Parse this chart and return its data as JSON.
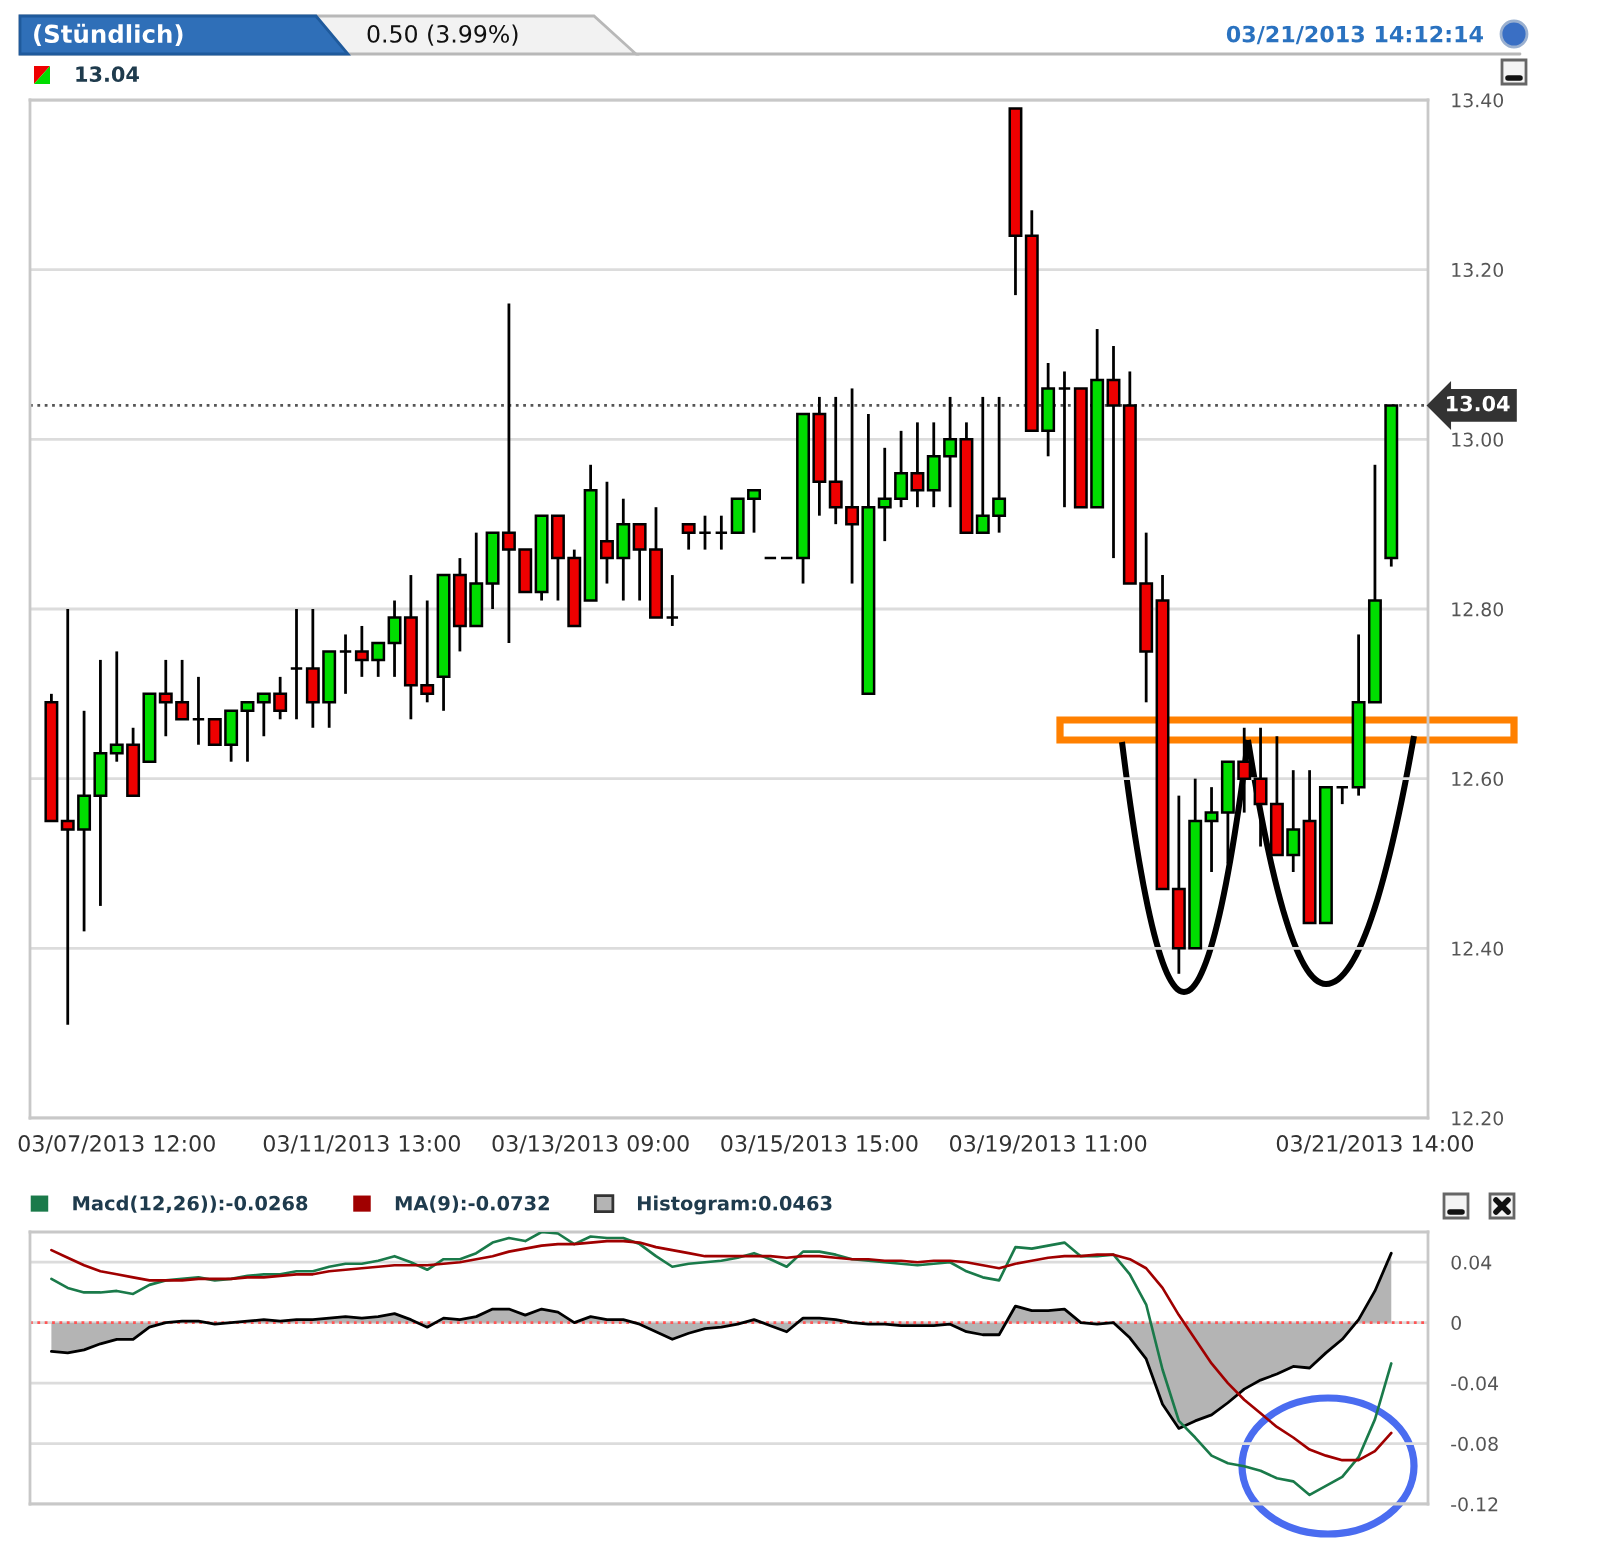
{
  "chart_data": [
    {
      "type": "candlestick",
      "title": "(Stündlich)",
      "subtitle": "0.50 (3.99%)",
      "annotations": [
        "03/21/2013 14:12:14",
        "13.04"
      ],
      "categories": [
        null,
        null,
        null,
        null,
        "03/07/2013 12:00",
        null,
        null,
        null,
        null,
        null,
        null,
        null,
        null,
        null,
        null,
        null,
        null,
        null,
        null,
        "03/11/2013 13:00",
        null,
        null,
        null,
        null,
        null,
        null,
        null,
        null,
        null,
        null,
        null,
        null,
        null,
        "03/13/2013 09:00",
        null,
        null,
        null,
        null,
        null,
        null,
        null,
        null,
        null,
        null,
        null,
        null,
        null,
        "03/15/2013 15:00",
        null,
        null,
        null,
        null,
        null,
        null,
        null,
        null,
        null,
        null,
        null,
        null,
        null,
        "03/19/2013 11:00",
        null,
        null,
        null,
        null,
        null,
        null,
        null,
        null,
        null,
        null,
        null,
        null,
        null,
        null,
        null,
        null,
        null,
        null,
        null,
        "03/21/2013 14:00",
        null
      ],
      "ohlc": [
        [
          12.69,
          12.7,
          12.55,
          12.55
        ],
        [
          12.55,
          12.8,
          12.31,
          12.54
        ],
        [
          12.54,
          12.68,
          12.42,
          12.58
        ],
        [
          12.58,
          12.74,
          12.45,
          12.63
        ],
        [
          12.63,
          12.75,
          12.62,
          12.64
        ],
        [
          12.64,
          12.66,
          12.58,
          12.58
        ],
        [
          12.62,
          12.7,
          12.62,
          12.7
        ],
        [
          12.7,
          12.74,
          12.65,
          12.69
        ],
        [
          12.69,
          12.74,
          12.67,
          12.67
        ],
        [
          12.67,
          12.72,
          12.64,
          12.67
        ],
        [
          12.67,
          12.67,
          12.64,
          12.64
        ],
        [
          12.64,
          12.68,
          12.62,
          12.68
        ],
        [
          12.68,
          12.69,
          12.62,
          12.69
        ],
        [
          12.69,
          12.7,
          12.65,
          12.7
        ],
        [
          12.7,
          12.72,
          12.67,
          12.68
        ],
        [
          12.73,
          12.8,
          12.67,
          12.73
        ],
        [
          12.73,
          12.8,
          12.66,
          12.69
        ],
        [
          12.69,
          12.75,
          12.66,
          12.75
        ],
        [
          12.75,
          12.77,
          12.7,
          12.75
        ],
        [
          12.75,
          12.78,
          12.72,
          12.74
        ],
        [
          12.74,
          12.76,
          12.72,
          12.76
        ],
        [
          12.76,
          12.81,
          12.72,
          12.79
        ],
        [
          12.79,
          12.84,
          12.67,
          12.71
        ],
        [
          12.71,
          12.81,
          12.69,
          12.7
        ],
        [
          12.72,
          12.84,
          12.68,
          12.84
        ],
        [
          12.84,
          12.86,
          12.75,
          12.78
        ],
        [
          12.78,
          12.89,
          12.78,
          12.83
        ],
        [
          12.83,
          12.89,
          12.8,
          12.89
        ],
        [
          12.89,
          13.16,
          12.76,
          12.87
        ],
        [
          12.87,
          12.87,
          12.82,
          12.82
        ],
        [
          12.82,
          12.91,
          12.81,
          12.91
        ],
        [
          12.91,
          12.91,
          12.81,
          12.86
        ],
        [
          12.86,
          12.87,
          12.78,
          12.78
        ],
        [
          12.81,
          12.97,
          12.81,
          12.94
        ],
        [
          12.88,
          12.95,
          12.83,
          12.86
        ],
        [
          12.86,
          12.93,
          12.81,
          12.9
        ],
        [
          12.9,
          12.9,
          12.81,
          12.87
        ],
        [
          12.87,
          12.92,
          12.79,
          12.79
        ],
        [
          12.79,
          12.84,
          12.78,
          12.79
        ],
        [
          12.9,
          12.9,
          12.87,
          12.89
        ],
        [
          12.89,
          12.91,
          12.87,
          12.89
        ],
        [
          12.89,
          12.91,
          12.87,
          12.89
        ],
        [
          12.89,
          12.93,
          12.89,
          12.93
        ],
        [
          12.93,
          12.94,
          12.89,
          12.94
        ],
        [
          12.86,
          12.86,
          12.86,
          12.86
        ],
        [
          12.86,
          12.86,
          12.86,
          12.86
        ],
        [
          12.86,
          13.03,
          12.83,
          13.03
        ],
        [
          13.03,
          13.05,
          12.91,
          12.95
        ],
        [
          12.95,
          13.05,
          12.9,
          12.92
        ],
        [
          12.92,
          13.06,
          12.83,
          12.9
        ],
        [
          12.7,
          13.03,
          12.7,
          12.92
        ],
        [
          12.92,
          12.99,
          12.88,
          12.93
        ],
        [
          12.93,
          13.01,
          12.92,
          12.96
        ],
        [
          12.96,
          13.02,
          12.92,
          12.94
        ],
        [
          12.94,
          13.02,
          12.92,
          12.98
        ],
        [
          12.98,
          13.05,
          12.92,
          13.0
        ],
        [
          13.0,
          13.02,
          12.89,
          12.89
        ],
        [
          12.89,
          13.05,
          12.89,
          12.91
        ],
        [
          12.91,
          13.05,
          12.89,
          12.93
        ],
        [
          13.39,
          13.39,
          13.17,
          13.24
        ],
        [
          13.24,
          13.27,
          13.01,
          13.01
        ],
        [
          13.01,
          13.09,
          12.98,
          13.06
        ],
        [
          13.06,
          13.08,
          12.92,
          13.06
        ],
        [
          13.06,
          13.06,
          12.92,
          12.92
        ],
        [
          12.92,
          13.13,
          12.92,
          13.07
        ],
        [
          13.07,
          13.11,
          12.86,
          13.04
        ],
        [
          13.04,
          13.08,
          12.83,
          12.83
        ],
        [
          12.83,
          12.89,
          12.69,
          12.75
        ],
        [
          12.81,
          12.84,
          12.47,
          12.47
        ],
        [
          12.47,
          12.58,
          12.37,
          12.4
        ],
        [
          12.4,
          12.6,
          12.4,
          12.55
        ],
        [
          12.55,
          12.59,
          12.49,
          12.56
        ],
        [
          12.56,
          12.62,
          12.5,
          12.62
        ],
        [
          12.62,
          12.66,
          12.56,
          12.6
        ],
        [
          12.6,
          12.66,
          12.52,
          12.57
        ],
        [
          12.57,
          12.65,
          12.51,
          12.51
        ],
        [
          12.51,
          12.61,
          12.49,
          12.54
        ],
        [
          12.55,
          12.61,
          12.43,
          12.43
        ],
        [
          12.43,
          12.59,
          12.43,
          12.59
        ],
        [
          12.59,
          12.59,
          12.57,
          12.59
        ],
        [
          12.59,
          12.77,
          12.58,
          12.69
        ],
        [
          12.69,
          12.97,
          12.69,
          12.81
        ],
        [
          12.86,
          13.04,
          12.85,
          13.04
        ]
      ],
      "colors": [
        "#ee0000",
        "#ee0000",
        "#00dd00",
        "#00dd00",
        "#00dd00",
        "#ee0000",
        "#00dd00",
        "#ee0000",
        "#ee0000",
        "#000000",
        "#ee0000",
        "#00dd00",
        "#00dd00",
        "#00dd00",
        "#ee0000",
        "#000000",
        "#ee0000",
        "#00dd00",
        "#000000",
        "#ee0000",
        "#00dd00",
        "#00dd00",
        "#ee0000",
        "#ee0000",
        "#00dd00",
        "#ee0000",
        "#00dd00",
        "#00dd00",
        "#ee0000",
        "#ee0000",
        "#00dd00",
        "#ee0000",
        "#ee0000",
        "#00dd00",
        "#ee0000",
        "#00dd00",
        "#ee0000",
        "#ee0000",
        "#000000",
        "#ee0000",
        "#000000",
        "#000000",
        "#00dd00",
        "#00dd00",
        "#000000",
        "#000000",
        "#00dd00",
        "#ee0000",
        "#ee0000",
        "#ee0000",
        "#00dd00",
        "#00dd00",
        "#00dd00",
        "#ee0000",
        "#00dd00",
        "#00dd00",
        "#ee0000",
        "#00dd00",
        "#00dd00",
        "#ee0000",
        "#ee0000",
        "#00dd00",
        "#000000",
        "#ee0000",
        "#00dd00",
        "#ee0000",
        "#ee0000",
        "#ee0000",
        "#ee0000",
        "#ee0000",
        "#00dd00",
        "#00dd00",
        "#00dd00",
        "#ee0000",
        "#ee0000",
        "#ee0000",
        "#00dd00",
        "#ee0000",
        "#00dd00",
        "#000000",
        "#00dd00",
        "#00dd00",
        "#00dd00"
      ],
      "ylim": [
        12.2,
        13.4
      ],
      "yticks": [
        {
          "value": 12.2,
          "label": "12.20"
        },
        {
          "value": 12.4,
          "label": "12.40"
        },
        {
          "value": 12.6,
          "label": "12.60"
        },
        {
          "value": 12.8,
          "label": "12.80"
        },
        {
          "value": 13.0,
          "label": "13.00"
        },
        {
          "value": 13.2,
          "label": "13.20"
        },
        {
          "value": 13.4,
          "label": "13.40"
        }
      ],
      "grid": "y",
      "ref_lines": [
        {
          "axis": "y",
          "value": 13.04,
          "label": "13.04",
          "line_style": "dotted",
          "color": "#555555"
        }
      ]
    },
    {
      "type": "line",
      "tick_labels": "y",
      "legend": "top left",
      "grid": "y",
      "categories": [
        null,
        null,
        null,
        null,
        null,
        null,
        null,
        null,
        null,
        null,
        null,
        null,
        null,
        null,
        null,
        null,
        null,
        null,
        null,
        null,
        null,
        null,
        null,
        null,
        null,
        null,
        null,
        null,
        null,
        null,
        null,
        null,
        null,
        null,
        null,
        null,
        null,
        null,
        null,
        null,
        null,
        null,
        null,
        null,
        null,
        null,
        null,
        null,
        null,
        null,
        null,
        null,
        null,
        null,
        null,
        null,
        null,
        null,
        null,
        null,
        null,
        null,
        null,
        null,
        null,
        null,
        null,
        null,
        null,
        null,
        null,
        null,
        null,
        null,
        null,
        null,
        null,
        null,
        null,
        null,
        null,
        null,
        null
      ],
      "ylim": [
        -0.12,
        0.06
      ],
      "yticks": [
        -0.12,
        -0.08,
        -0.04,
        0,
        0.04
      ],
      "ref_lines": [
        {
          "axis": "y",
          "value": 0,
          "line_style": "dotted",
          "color": "#ff5555"
        }
      ],
      "series": [
        {
          "name": "Macd(12,26)):-0.0268",
          "type": "line",
          "color": "#1a7a4a",
          "values": [
            0.029,
            0.023,
            0.02,
            0.02,
            0.021,
            0.019,
            0.025,
            0.028,
            0.029,
            0.03,
            0.028,
            0.029,
            0.031,
            0.032,
            0.032,
            0.034,
            0.034,
            0.037,
            0.039,
            0.039,
            0.041,
            0.044,
            0.04,
            0.035,
            0.042,
            0.042,
            0.046,
            0.053,
            0.056,
            0.054,
            0.06,
            0.059,
            0.052,
            0.057,
            0.056,
            0.056,
            0.052,
            0.044,
            0.037,
            0.039,
            0.04,
            0.041,
            0.043,
            0.046,
            0.042,
            0.037,
            0.047,
            0.047,
            0.045,
            0.042,
            0.041,
            0.04,
            0.039,
            0.038,
            0.039,
            0.04,
            0.034,
            0.03,
            0.028,
            0.05,
            0.049,
            0.051,
            0.053,
            0.044,
            0.044,
            0.045,
            0.032,
            0.012,
            -0.031,
            -0.065,
            -0.076,
            -0.088,
            -0.093,
            -0.095,
            -0.098,
            -0.103,
            -0.105,
            -0.114,
            -0.108,
            -0.102,
            -0.089,
            -0.064,
            -0.027
          ]
        },
        {
          "name": "MA(9):-0.0732",
          "type": "line",
          "color": "#a00000",
          "values": [
            0.048,
            0.043,
            0.038,
            0.034,
            0.032,
            0.03,
            0.028,
            0.028,
            0.028,
            0.029,
            0.029,
            0.029,
            0.03,
            0.03,
            0.031,
            0.032,
            0.032,
            0.034,
            0.035,
            0.036,
            0.037,
            0.038,
            0.038,
            0.038,
            0.039,
            0.04,
            0.042,
            0.044,
            0.047,
            0.049,
            0.051,
            0.052,
            0.052,
            0.053,
            0.054,
            0.054,
            0.053,
            0.05,
            0.048,
            0.046,
            0.044,
            0.044,
            0.044,
            0.044,
            0.044,
            0.043,
            0.044,
            0.044,
            0.043,
            0.042,
            0.042,
            0.041,
            0.041,
            0.04,
            0.041,
            0.041,
            0.04,
            0.038,
            0.036,
            0.039,
            0.041,
            0.043,
            0.044,
            0.044,
            0.045,
            0.045,
            0.042,
            0.036,
            0.023,
            0.005,
            -0.011,
            -0.027,
            -0.04,
            -0.051,
            -0.06,
            -0.069,
            -0.076,
            -0.084,
            -0.088,
            -0.091,
            -0.091,
            -0.085,
            -0.073
          ]
        },
        {
          "name": "Histogram:0.0463",
          "type": "area",
          "color": "#b4b4b4",
          "values": [
            -0.019,
            -0.02,
            -0.018,
            -0.014,
            -0.011,
            -0.011,
            -0.003,
            0.0,
            0.001,
            0.001,
            -0.001,
            0.0,
            0.001,
            0.002,
            0.001,
            0.002,
            0.002,
            0.003,
            0.004,
            0.003,
            0.004,
            0.006,
            0.002,
            -0.003,
            0.003,
            0.002,
            0.004,
            0.009,
            0.009,
            0.005,
            0.009,
            0.007,
            0.0,
            0.004,
            0.002,
            0.002,
            -0.001,
            -0.006,
            -0.011,
            -0.007,
            -0.004,
            -0.003,
            -0.001,
            0.002,
            -0.002,
            -0.006,
            0.003,
            0.003,
            0.002,
            0.0,
            -0.001,
            -0.001,
            -0.002,
            -0.002,
            -0.002,
            -0.001,
            -0.006,
            -0.008,
            -0.008,
            0.011,
            0.008,
            0.008,
            0.009,
            0.0,
            -0.001,
            0.0,
            -0.01,
            -0.024,
            -0.054,
            -0.07,
            -0.065,
            -0.061,
            -0.053,
            -0.044,
            -0.038,
            -0.034,
            -0.029,
            -0.03,
            -0.02,
            -0.011,
            0.002,
            0.021,
            0.046
          ]
        }
      ]
    }
  ]
}
